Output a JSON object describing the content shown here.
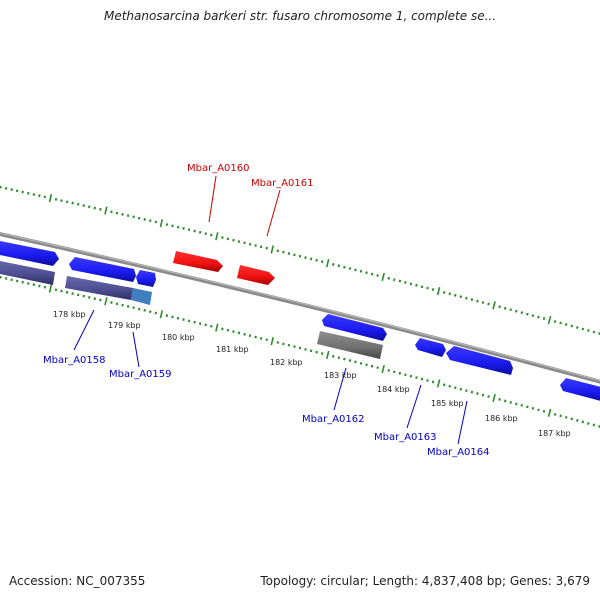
{
  "title": "Methanosarcina barkeri str. fusaro chromosome 1, complete se...",
  "footer": {
    "accession": "Accession: NC_007355",
    "summary": "Topology: circular; Length: 4,837,408 bp; Genes: 3,679"
  },
  "colors": {
    "forward_gene": "#1a1aee",
    "forward_gene_dark": "#0c0c9a",
    "highlight_gene": "#ee1111",
    "reverse_gene": "#4b4b8f",
    "reverse_gene_grey": "#6f6f6f",
    "rrna_small": "#3f7fbf",
    "backbone": "#8a8a8a",
    "tick": "#2e8b2e",
    "forward_label": "#0000cc",
    "highlight_label": "#cc0000"
  },
  "ticks": [
    "178 kbp",
    "179 kbp",
    "180 kbp",
    "181 kbp",
    "182 kbp",
    "183 kbp",
    "184 kbp",
    "185 kbp",
    "186 kbp",
    "187 kbp"
  ],
  "gene_labels": [
    {
      "text": "Mbar_A0160",
      "kind": "highlight"
    },
    {
      "text": "Mbar_A0161",
      "kind": "highlight"
    },
    {
      "text": "Mbar_A0158",
      "kind": "forward"
    },
    {
      "text": "Mbar_A0159",
      "kind": "forward"
    },
    {
      "text": "Mbar_A0162",
      "kind": "forward"
    },
    {
      "text": "Mbar_A0163",
      "kind": "forward"
    },
    {
      "text": "Mbar_A0164",
      "kind": "forward"
    }
  ]
}
